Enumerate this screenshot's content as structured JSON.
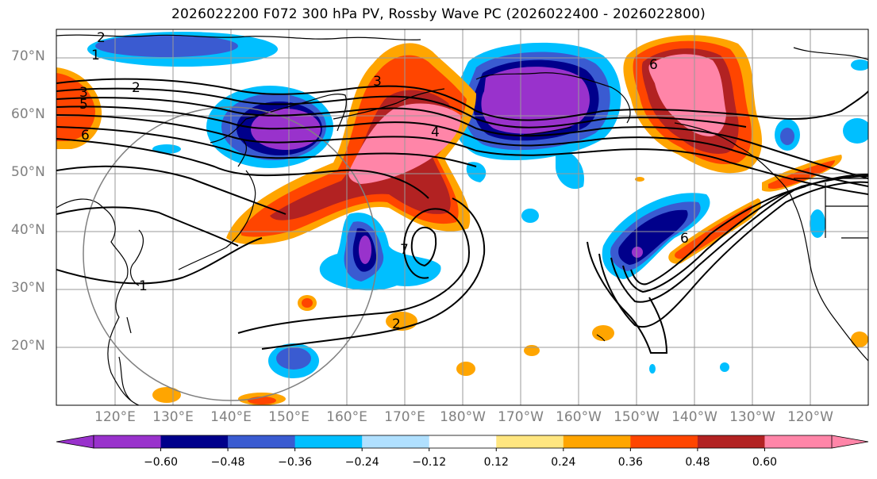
{
  "title": "2026022200 F072 300 hPa PV, Rossby Wave PC (2026022400 - 2026022800)",
  "lat_labels": [
    "70°N",
    "60°N",
    "50°N",
    "40°N",
    "30°N",
    "20°N"
  ],
  "lon_labels": [
    "120°E",
    "130°E",
    "140°E",
    "150°E",
    "160°E",
    "170°E",
    "180°W",
    "170°W",
    "160°W",
    "150°W",
    "140°W",
    "130°W",
    "120°W"
  ],
  "colorbar": {
    "colors": [
      "#9932cc",
      "#00008b",
      "#3a5bd1",
      "#00bfff",
      "#b0e0ff",
      "#ffffff",
      "#ffe680",
      "#ffa500",
      "#ff4500",
      "#b22222",
      "#ff85a8"
    ],
    "tick_labels": [
      "−0.60",
      "−0.48",
      "−0.36",
      "−0.24",
      "−0.12",
      "0.12",
      "0.24",
      "0.36",
      "0.48",
      "0.60"
    ]
  },
  "contour_labels": [
    "2",
    "1",
    "2",
    "3",
    "5",
    "6",
    "3",
    "4",
    "6",
    "6",
    "7",
    "2",
    "1"
  ]
}
